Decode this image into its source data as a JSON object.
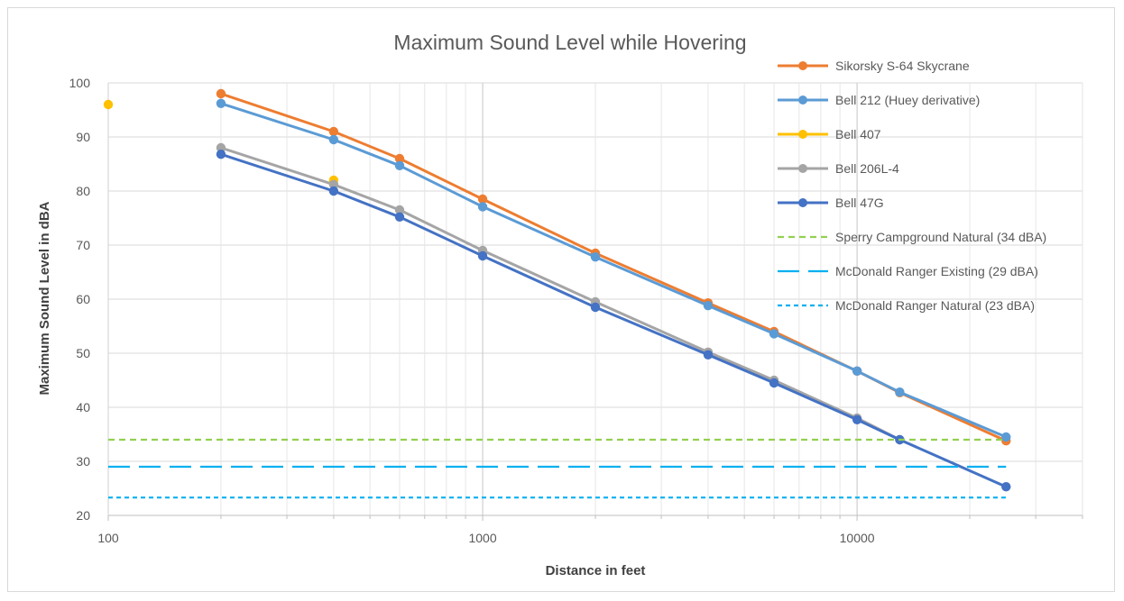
{
  "chart_data": {
    "type": "line",
    "title": "Maximum Sound Level while Hovering",
    "xlabel": "Distance  in feet",
    "ylabel": "Maximum Sound Level in dBA",
    "x_scale": "log",
    "xlim": [
      100,
      40000
    ],
    "ylim": [
      20,
      100
    ],
    "x_ticks": [
      100,
      1000,
      10000
    ],
    "x_tick_labels": [
      "100",
      "1000",
      "10000"
    ],
    "y_ticks": [
      20,
      30,
      40,
      50,
      60,
      70,
      80,
      90,
      100
    ],
    "y_tick_labels": [
      "20",
      "30",
      "40",
      "50",
      "60",
      "70",
      "80",
      "90",
      "100"
    ],
    "grid": true,
    "legend_position": "right",
    "series": [
      {
        "name": "Sikorsky S-64 Skycrane",
        "color": "#ED7D31",
        "style": "solid-markers",
        "points": [
          [
            200,
            98
          ],
          [
            400,
            91
          ],
          [
            600,
            86
          ],
          [
            1000,
            78.5
          ],
          [
            2000,
            68.5
          ],
          [
            4000,
            59.3
          ],
          [
            6000,
            54
          ],
          [
            10000,
            46.7
          ],
          [
            13000,
            42.7
          ],
          [
            25000,
            33.8
          ]
        ]
      },
      {
        "name": "Bell 212 (Huey derivative)",
        "color": "#5B9BD5",
        "style": "solid-markers",
        "points": [
          [
            200,
            96.2
          ],
          [
            400,
            89.5
          ],
          [
            600,
            84.7
          ],
          [
            1000,
            77.1
          ],
          [
            2000,
            67.8
          ],
          [
            4000,
            58.8
          ],
          [
            6000,
            53.6
          ],
          [
            10000,
            46.7
          ],
          [
            13000,
            42.8
          ],
          [
            25000,
            34.5
          ]
        ]
      },
      {
        "name": "Bell 407",
        "color": "#FFC000",
        "style": "solid-markers",
        "points": [
          [
            100,
            96
          ],
          [
            400,
            82
          ]
        ]
      },
      {
        "name": "Bell 206L-4",
        "color": "#A5A5A5",
        "style": "solid-markers",
        "points": [
          [
            200,
            88
          ],
          [
            400,
            81.2
          ],
          [
            600,
            76.5
          ],
          [
            1000,
            69
          ],
          [
            2000,
            59.5
          ],
          [
            4000,
            50.2
          ],
          [
            6000,
            45
          ],
          [
            10000,
            38
          ],
          [
            13000,
            34
          ]
        ]
      },
      {
        "name": "Bell 47G",
        "color": "#4472C4",
        "style": "solid-markers",
        "points": [
          [
            200,
            86.8
          ],
          [
            400,
            80
          ],
          [
            600,
            75.2
          ],
          [
            1000,
            68
          ],
          [
            2000,
            58.5
          ],
          [
            4000,
            49.7
          ],
          [
            6000,
            44.5
          ],
          [
            10000,
            37.7
          ],
          [
            13000,
            34
          ],
          [
            25000,
            25.3
          ]
        ]
      },
      {
        "name": "Sperry Campground Natural (34 dBA)",
        "color": "#92D050",
        "style": "dashed",
        "points": [
          [
            100,
            34
          ],
          [
            25000,
            34
          ]
        ]
      },
      {
        "name": "McDonald Ranger Existing (29 dBA)",
        "color": "#00B0F0",
        "style": "long-dashed",
        "points": [
          [
            100,
            29
          ],
          [
            25000,
            29
          ]
        ]
      },
      {
        "name": "McDonald Ranger Natural (23 dBA)",
        "color": "#00B0F0",
        "style": "dotted",
        "points": [
          [
            100,
            23.3
          ],
          [
            25000,
            23.3
          ]
        ]
      }
    ]
  }
}
